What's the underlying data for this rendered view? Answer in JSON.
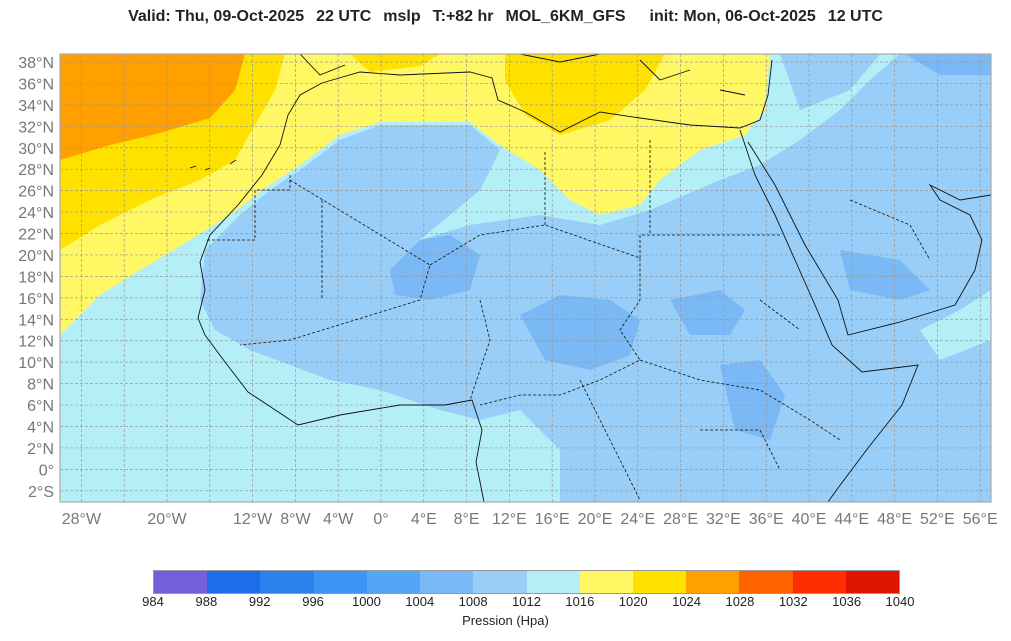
{
  "title": {
    "valid": "Valid: Thu, 09-Oct-2025",
    "valid_hour": "22 UTC",
    "field": "mslp",
    "lead": "T:+82 hr",
    "model": "MOL_6KM_GFS",
    "init": "init: Mon, 06-Oct-2025",
    "init_hour": "12 UTC"
  },
  "map": {
    "extent_lon": [
      -30,
      57
    ],
    "extent_lat": [
      -3,
      38.7
    ],
    "lat_ticks": [
      {
        "v": 38,
        "label": "38°N"
      },
      {
        "v": 36,
        "label": "36°N"
      },
      {
        "v": 34,
        "label": "34°N"
      },
      {
        "v": 32,
        "label": "32°N"
      },
      {
        "v": 30,
        "label": "30°N"
      },
      {
        "v": 28,
        "label": "28°N"
      },
      {
        "v": 26,
        "label": "26°N"
      },
      {
        "v": 24,
        "label": "24°N"
      },
      {
        "v": 22,
        "label": "22°N"
      },
      {
        "v": 20,
        "label": "20°N"
      },
      {
        "v": 18,
        "label": "18°N"
      },
      {
        "v": 16,
        "label": "16°N"
      },
      {
        "v": 14,
        "label": "14°N"
      },
      {
        "v": 12,
        "label": "12°N"
      },
      {
        "v": 10,
        "label": "10°N"
      },
      {
        "v": 8,
        "label": "8°N"
      },
      {
        "v": 6,
        "label": "6°N"
      },
      {
        "v": 4,
        "label": "4°N"
      },
      {
        "v": 2,
        "label": "2°N"
      },
      {
        "v": 0,
        "label": "0°"
      },
      {
        "v": -2,
        "label": "2°S"
      }
    ],
    "lon_ticks": [
      {
        "v": -28,
        "label": "28°W"
      },
      {
        "v": -20,
        "label": "20°W"
      },
      {
        "v": -12,
        "label": "12°W"
      },
      {
        "v": -8,
        "label": "8°W"
      },
      {
        "v": -4,
        "label": "4°W"
      },
      {
        "v": 0,
        "label": "0°"
      },
      {
        "v": 4,
        "label": "4°E"
      },
      {
        "v": 8,
        "label": "8°E"
      },
      {
        "v": 12,
        "label": "12°E"
      },
      {
        "v": 16,
        "label": "16°E"
      },
      {
        "v": 20,
        "label": "20°E"
      },
      {
        "v": 24,
        "label": "24°E"
      },
      {
        "v": 28,
        "label": "28°E"
      },
      {
        "v": 32,
        "label": "32°E"
      },
      {
        "v": 36,
        "label": "36°E"
      },
      {
        "v": 40,
        "label": "40°E"
      },
      {
        "v": 44,
        "label": "44°E"
      },
      {
        "v": 48,
        "label": "48°E"
      },
      {
        "v": 52,
        "label": "52°E"
      },
      {
        "v": 56,
        "label": "56°E"
      }
    ],
    "gridlines": true
  },
  "colorbar": {
    "label": "Pression (Hpa)",
    "levels": [
      "984",
      "988",
      "992",
      "996",
      "1000",
      "1004",
      "1008",
      "1012",
      "1016",
      "1020",
      "1024",
      "1028",
      "1032",
      "1036",
      "1040"
    ],
    "colors": [
      "#735fdb",
      "#1e6ce8",
      "#2a82ec",
      "#3b95f2",
      "#52a6f5",
      "#7ab8f6",
      "#98cef7",
      "#b4eff8",
      "#fff763",
      "#ffe100",
      "#ff9f00",
      "#ff6200",
      "#ff2e00",
      "#e01500"
    ]
  }
}
